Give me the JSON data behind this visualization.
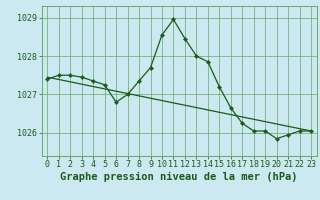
{
  "title": "Graphe pression niveau de la mer (hPa)",
  "bg_color": "#cce8f0",
  "grid_color": "#66aa66",
  "line_color": "#1a5c1a",
  "xlim": [
    -0.5,
    23.5
  ],
  "ylim": [
    1025.4,
    1029.3
  ],
  "yticks": [
    1026,
    1027,
    1028,
    1029
  ],
  "xticks": [
    0,
    1,
    2,
    3,
    4,
    5,
    6,
    7,
    8,
    9,
    10,
    11,
    12,
    13,
    14,
    15,
    16,
    17,
    18,
    19,
    20,
    21,
    22,
    23
  ],
  "series1_x": [
    0,
    1,
    2,
    3,
    4,
    5,
    6,
    7,
    8,
    9,
    10,
    11,
    12,
    13,
    14,
    15,
    16,
    17,
    18,
    19,
    20,
    21,
    22,
    23
  ],
  "series1_y": [
    1027.4,
    1027.5,
    1027.5,
    1027.45,
    1027.35,
    1027.25,
    1026.8,
    1027.0,
    1027.35,
    1027.7,
    1028.55,
    1028.95,
    1028.45,
    1028.0,
    1027.85,
    1027.2,
    1026.65,
    1026.25,
    1026.05,
    1026.05,
    1025.85,
    1025.95,
    1026.05,
    1026.05
  ],
  "series2_x": [
    0,
    23
  ],
  "series2_y": [
    1027.45,
    1026.05
  ],
  "title_fontsize": 7.5,
  "tick_fontsize": 6.0
}
